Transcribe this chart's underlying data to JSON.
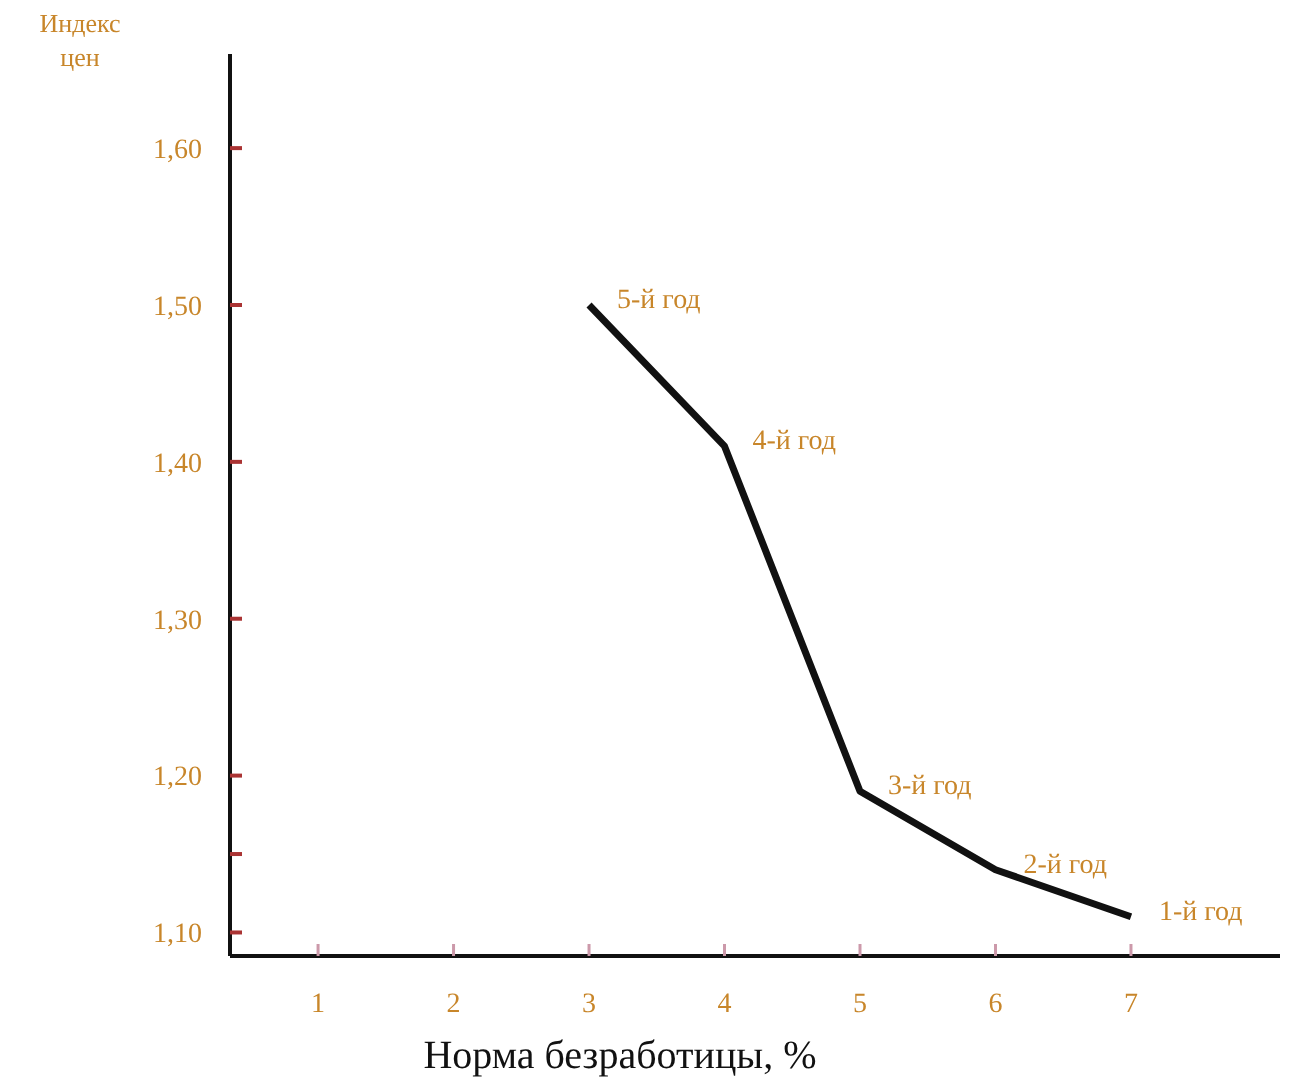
{
  "chart_data": {
    "type": "line",
    "ylabel": "Индекс цен",
    "xlabel": "Норма безработицы, %",
    "x": [
      3,
      4,
      5,
      6,
      7
    ],
    "series": [
      {
        "color": "#111111",
        "values": [
          1.5,
          1.41,
          1.19,
          1.14,
          1.11
        ]
      }
    ],
    "xlim": [
      0.35,
      8.1
    ],
    "xticks": [
      1,
      2,
      3,
      4,
      5,
      6,
      7
    ],
    "ylim": [
      1.085,
      1.66
    ],
    "yticks": [
      {
        "value": 1.1,
        "label": "1,10"
      },
      {
        "value": 1.15,
        "label": null
      },
      {
        "value": 1.2,
        "label": "1,20"
      },
      {
        "value": 1.3,
        "label": "1,30"
      },
      {
        "value": 1.4,
        "label": "1,40"
      },
      {
        "value": 1.5,
        "label": "1,50"
      },
      {
        "value": 1.6,
        "label": "1,60"
      }
    ],
    "annotations": [
      {
        "text": "5-й год",
        "x": 3,
        "y": 1.5
      },
      {
        "text": "4-й год",
        "x": 4,
        "y": 1.41
      },
      {
        "text": "3-й год",
        "x": 5,
        "y": 1.19
      },
      {
        "text": "2-й год",
        "x": 6,
        "y": 1.14
      },
      {
        "text": "1-й год",
        "x": 7,
        "y": 1.11
      }
    ],
    "grid": false,
    "marker": "none",
    "line_style": "solid"
  }
}
